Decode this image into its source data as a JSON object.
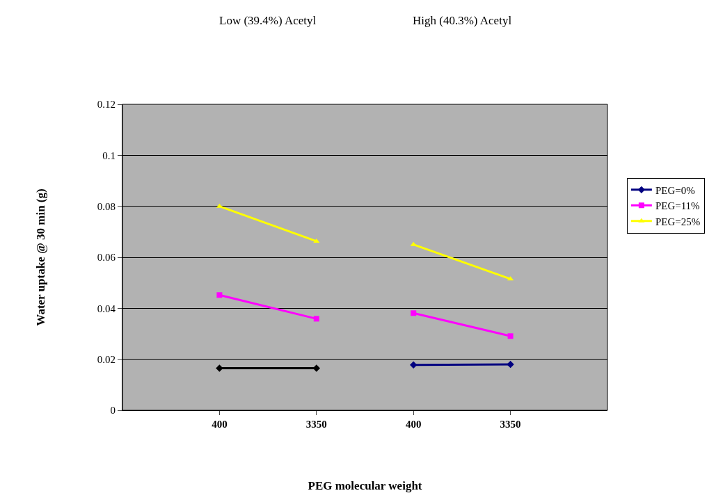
{
  "chart_data": {
    "type": "line",
    "xlabel": "PEG molecular weight",
    "ylabel": "Water uptake @ 30 min (g)",
    "annotations": [
      "Low (39.4%) Acetyl",
      "High (40.3%) Acetyl"
    ],
    "categories": [
      null,
      "400",
      "3350",
      "400",
      "3350",
      null
    ],
    "series": [
      {
        "color": "#000000",
        "marker": "diamond",
        "values": [
          null,
          0.0165,
          0.0165,
          null,
          null,
          null
        ]
      },
      {
        "name": "PEG=0%",
        "color": "#000080",
        "marker": "diamond",
        "values": [
          null,
          null,
          null,
          0.0178,
          0.018,
          null
        ]
      },
      {
        "color": "#ff00ff",
        "marker": "square",
        "values": [
          null,
          0.0452,
          0.0359,
          null,
          null,
          null
        ]
      },
      {
        "name": "PEG=11%",
        "color": "#ff00ff",
        "marker": "square",
        "values": [
          null,
          null,
          null,
          0.0381,
          0.0291,
          null
        ]
      },
      {
        "color": "#ffff00",
        "marker": "triangle",
        "values": [
          null,
          0.08,
          0.0663,
          null,
          null,
          null
        ]
      },
      {
        "name": "PEG=25%",
        "color": "#ffff00",
        "marker": "triangle",
        "values": [
          null,
          null,
          null,
          0.065,
          0.0515,
          null
        ]
      }
    ],
    "ylim": [
      0,
      0.12
    ],
    "yticks": [
      0,
      0.02,
      0.04,
      0.06,
      0.08,
      0.1,
      0.12
    ],
    "grid": "y",
    "legend": "right"
  }
}
